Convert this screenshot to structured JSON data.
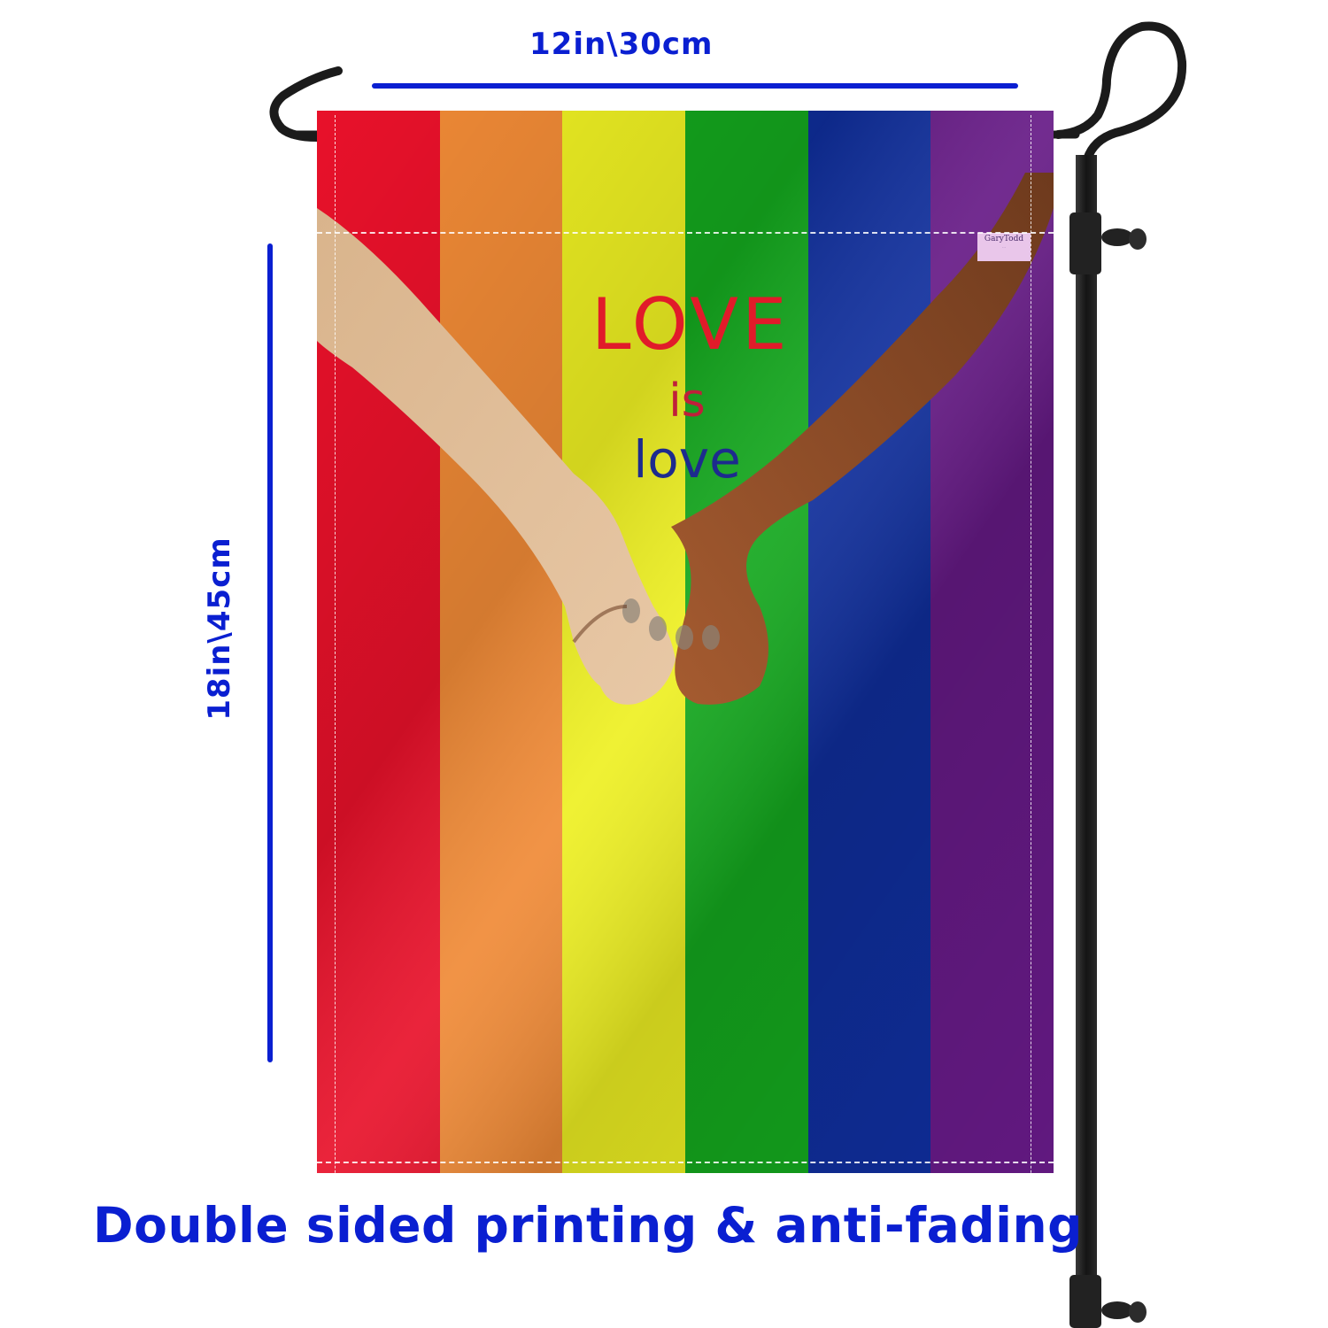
{
  "dimensions": {
    "width_label": "12in\\30cm",
    "height_label": "18in\\45cm"
  },
  "flag": {
    "stripe_colors": [
      "#e8112a",
      "#f08a36",
      "#eef022",
      "#14a81e",
      "#0f2e9c",
      "#661a86"
    ],
    "text": {
      "line1": "LOVE",
      "line2": "is",
      "line3": "love"
    },
    "text_colors": {
      "line1": "#e11b2a",
      "line2": "#c01f3a",
      "line3": "#1d2b8e"
    },
    "watermark": {
      "title": "GaryTodd",
      "fine_print": "..."
    }
  },
  "caption": "Double sided printing & anti-fading",
  "colors": {
    "dimension_blue": "#0a1fd1",
    "pole": "#1b1b1b"
  },
  "icons": {
    "pole": "garden-flag-stand",
    "hands": "holding-hands"
  }
}
